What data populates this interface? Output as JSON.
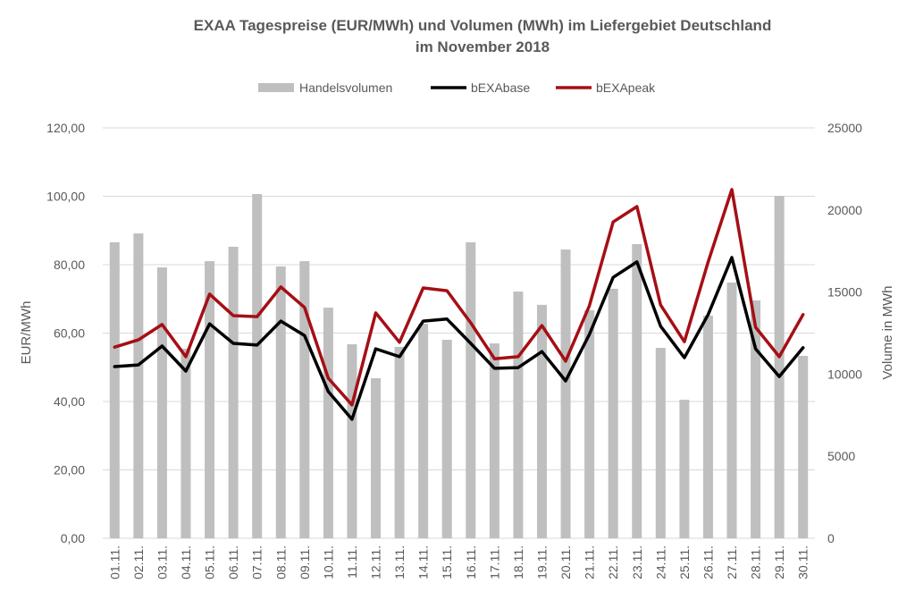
{
  "chart_data": {
    "type": "bar",
    "title": [
      "EXAA Tagespreise (EUR/MWh) und Volumen (MWh) im Liefergebiet Deutschland",
      "im November 2018"
    ],
    "xlabel": "",
    "ylabel": "EUR/MWh",
    "y2label": "Volume in MWh",
    "ylim": [
      0,
      120
    ],
    "y2lim": [
      0,
      25000
    ],
    "yticks": [
      "0,00",
      "20,00",
      "40,00",
      "60,00",
      "80,00",
      "100,00",
      "120,00"
    ],
    "y2ticks": [
      "0",
      "5000",
      "10000",
      "15000",
      "20000",
      "25000"
    ],
    "grid": true,
    "legend_position": "top-center",
    "categories": [
      "01.11.",
      "02.11.",
      "03.11.",
      "04.11.",
      "05.11.",
      "06.11.",
      "07.11.",
      "08.11.",
      "09.11.",
      "10.11.",
      "11.11.",
      "12.11.",
      "13.11.",
      "14.11.",
      "15.11.",
      "16.11.",
      "17.11.",
      "18.11.",
      "19.11.",
      "20.11.",
      "21.11.",
      "22.11.",
      "23.11.",
      "24.11.",
      "25.11.",
      "26.11.",
      "27.11.",
      "28.11.",
      "29.11.",
      "30.11."
    ],
    "series": [
      {
        "name": "Handelsvolumen",
        "type": "bar",
        "axis": "right",
        "color": "#bfbfbf",
        "values": [
          18030,
          18570,
          16500,
          11550,
          16880,
          17760,
          20970,
          16560,
          16880,
          14050,
          11820,
          9750,
          11660,
          13070,
          12090,
          18030,
          11870,
          15030,
          14220,
          17590,
          13890,
          15200,
          17920,
          11600,
          8440,
          13560,
          15580,
          14490,
          20860,
          11110
        ]
      },
      {
        "name": "bEXAbase",
        "type": "line",
        "axis": "left",
        "color": "#000000",
        "values": [
          50.2,
          50.7,
          56.2,
          48.9,
          62.7,
          57.0,
          56.5,
          63.5,
          59.3,
          42.9,
          34.8,
          55.4,
          53.1,
          63.5,
          64.1,
          57.0,
          49.7,
          49.9,
          54.6,
          46.0,
          59.6,
          76.3,
          80.8,
          62.0,
          52.8,
          65.4,
          82.1,
          55.4,
          47.3,
          55.7
        ]
      },
      {
        "name": "bEXApeak",
        "type": "line",
        "axis": "left",
        "color": "#a50f15",
        "values": [
          55.9,
          58.0,
          62.5,
          53.1,
          71.4,
          65.1,
          64.8,
          73.5,
          67.5,
          46.8,
          39.0,
          65.9,
          57.3,
          73.2,
          72.4,
          63.0,
          52.5,
          53.1,
          62.2,
          51.8,
          68.0,
          92.5,
          97.0,
          68.2,
          57.5,
          80.8,
          102.0,
          61.7,
          53.1,
          65.4
        ]
      }
    ]
  }
}
